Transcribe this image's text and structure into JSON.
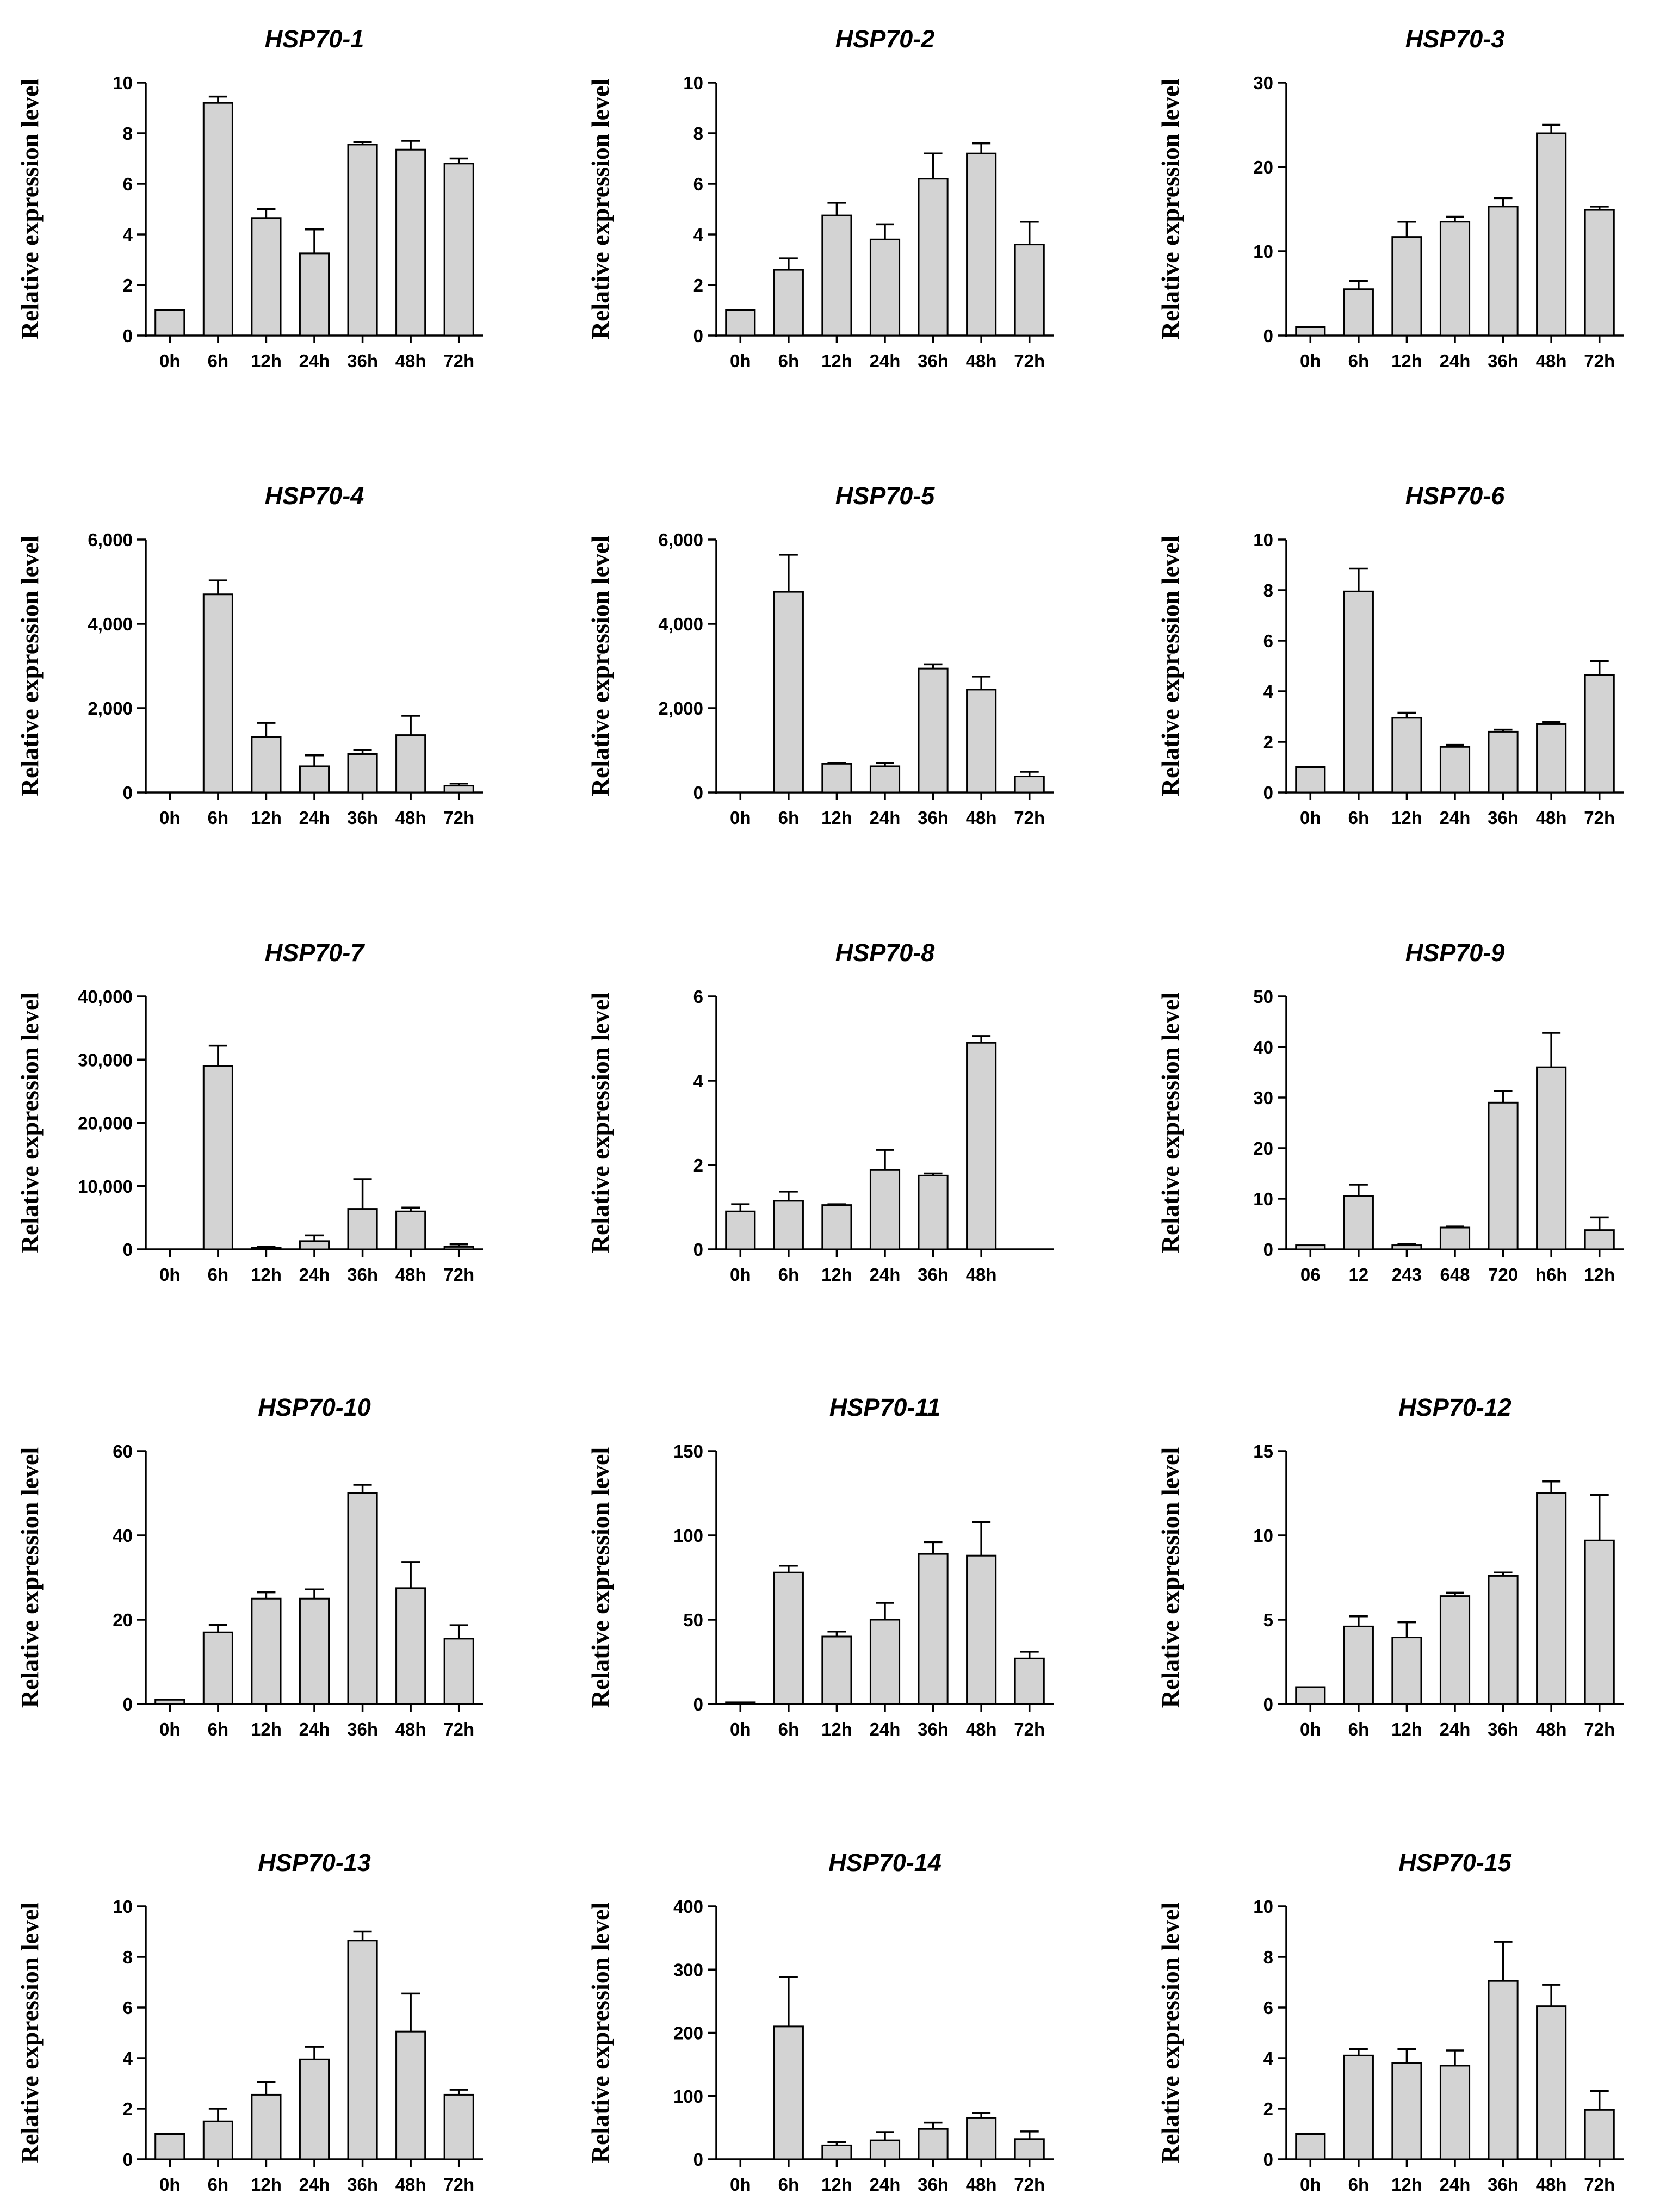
{
  "chart_data": [
    {
      "type": "bar",
      "title": "HSP70-1",
      "ylabel": "Relative expression level",
      "categories": [
        "0h",
        "6h",
        "12h",
        "24h",
        "36h",
        "48h",
        "72h"
      ],
      "values": [
        1,
        9.2,
        4.65,
        3.25,
        7.55,
        7.35,
        6.8
      ],
      "errors": [
        0,
        0.25,
        0.35,
        0.95,
        0.1,
        0.35,
        0.2
      ],
      "ylim": [
        0,
        10
      ],
      "yticks": [
        0,
        2,
        4,
        6,
        8,
        10
      ],
      "yticklabels": [
        "0",
        "2",
        "4",
        "6",
        "8",
        "10"
      ]
    },
    {
      "type": "bar",
      "title": "HSP70-2",
      "ylabel": "Relative expression level",
      "categories": [
        "0h",
        "6h",
        "12h",
        "24h",
        "36h",
        "48h",
        "72h"
      ],
      "values": [
        1,
        2.6,
        4.75,
        3.8,
        6.2,
        7.2,
        3.6
      ],
      "errors": [
        0,
        0.45,
        0.5,
        0.6,
        1.0,
        0.4,
        0.9
      ],
      "ylim": [
        0,
        10
      ],
      "yticks": [
        0,
        2,
        4,
        6,
        8,
        10
      ],
      "yticklabels": [
        "0",
        "2",
        "4",
        "6",
        "8",
        "10"
      ]
    },
    {
      "type": "bar",
      "title": "HSP70-3",
      "ylabel": "Relative expression level",
      "categories": [
        "0h",
        "6h",
        "12h",
        "24h",
        "36h",
        "48h",
        "72h"
      ],
      "values": [
        1,
        5.5,
        11.7,
        13.5,
        15.3,
        24,
        14.9
      ],
      "errors": [
        0,
        1.0,
        1.8,
        0.6,
        1.0,
        1.0,
        0.4
      ],
      "ylim": [
        0,
        30
      ],
      "yticks": [
        0,
        10,
        20,
        30
      ],
      "yticklabels": [
        "0",
        "10",
        "20",
        "30"
      ]
    },
    {
      "type": "bar",
      "title": "HSP70-4",
      "ylabel": "Relative expression level",
      "categories": [
        "0h",
        "6h",
        "12h",
        "24h",
        "36h",
        "48h",
        "72h"
      ],
      "values": [
        0,
        4700,
        1320,
        620,
        910,
        1360,
        160
      ],
      "errors": [
        0,
        330,
        330,
        260,
        100,
        460,
        50
      ],
      "ylim": [
        0,
        6000
      ],
      "yticks": [
        0,
        2000,
        4000,
        6000
      ],
      "yticklabels": [
        "0",
        "2,000",
        "4,000",
        "6,000"
      ]
    },
    {
      "type": "bar",
      "title": "HSP70-5",
      "ylabel": "Relative expression level",
      "categories": [
        "0h",
        "6h",
        "12h",
        "24h",
        "36h",
        "48h",
        "72h"
      ],
      "values": [
        0,
        4760,
        680,
        620,
        2940,
        2440,
        380
      ],
      "errors": [
        0,
        880,
        20,
        80,
        100,
        310,
        110
      ],
      "ylim": [
        0,
        6000
      ],
      "yticks": [
        0,
        2000,
        4000,
        6000
      ],
      "yticklabels": [
        "0",
        "2,000",
        "4,000",
        "6,000"
      ]
    },
    {
      "type": "bar",
      "title": "HSP70-6",
      "ylabel": "Relative expression level",
      "categories": [
        "0h",
        "6h",
        "12h",
        "24h",
        "36h",
        "48h",
        "72h"
      ],
      "values": [
        1,
        7.95,
        2.95,
        1.8,
        2.4,
        2.7,
        4.65
      ],
      "errors": [
        0,
        0.9,
        0.2,
        0.08,
        0.08,
        0.08,
        0.55
      ],
      "ylim": [
        0,
        10
      ],
      "yticks": [
        0,
        2,
        4,
        6,
        8,
        10
      ],
      "yticklabels": [
        "0",
        "2",
        "4",
        "6",
        "8",
        "10"
      ]
    },
    {
      "type": "bar",
      "title": "HSP70-7",
      "ylabel": "Relative expression level",
      "categories": [
        "0h",
        "6h",
        "12h",
        "24h",
        "36h",
        "48h",
        "72h"
      ],
      "values": [
        0,
        29000,
        250,
        1300,
        6400,
        6000,
        400
      ],
      "errors": [
        0,
        3200,
        200,
        900,
        4700,
        600,
        400
      ],
      "ylim": [
        0,
        40000
      ],
      "yticks": [
        0,
        10000,
        20000,
        30000,
        40000
      ],
      "yticklabels": [
        "0",
        "10,000",
        "20,000",
        "30,000",
        "40,000"
      ]
    },
    {
      "type": "bar",
      "title": "HSP70-8",
      "ylabel": "Relative expression level",
      "categories": [
        "0h",
        "6h",
        "12h",
        "24h",
        "36h",
        "48h"
      ],
      "values": [
        0.9,
        1.15,
        1.05,
        1.88,
        1.75,
        4.9
      ],
      "errors": [
        0.17,
        0.22,
        0.02,
        0.48,
        0.05,
        0.16
      ],
      "ylim": [
        0,
        6
      ],
      "yticks": [
        0,
        2,
        4,
        6
      ],
      "yticklabels": [
        "0",
        "2",
        "4",
        "6"
      ]
    },
    {
      "type": "bar",
      "title": "HSP70-9",
      "ylabel": "Relative expression level",
      "categories": [
        "06",
        "12",
        "243",
        "648",
        "720",
        "h6h",
        "12h"
      ],
      "values": [
        0.8,
        10.5,
        0.8,
        4.3,
        29,
        36,
        3.8
      ],
      "errors": [
        0,
        2.3,
        0.3,
        0.2,
        2.3,
        6.8,
        2.5
      ],
      "ylim": [
        0,
        50
      ],
      "yticks": [
        0,
        10,
        20,
        30,
        40,
        50
      ],
      "yticklabels": [
        "0",
        "10",
        "20",
        "30",
        "40",
        "50"
      ]
    },
    {
      "type": "bar",
      "title": "HSP70-10",
      "ylabel": "Relative expression level",
      "categories": [
        "0h",
        "6h",
        "12h",
        "24h",
        "36h",
        "48h",
        "72h"
      ],
      "values": [
        1,
        17,
        25,
        25,
        50,
        27.5,
        15.5
      ],
      "errors": [
        0,
        1.8,
        1.5,
        2.2,
        2,
        6.2,
        3.2
      ],
      "ylim": [
        0,
        60
      ],
      "yticks": [
        0,
        20,
        40,
        60
      ],
      "yticklabels": [
        "0",
        "20",
        "40",
        "60"
      ]
    },
    {
      "type": "bar",
      "title": "HSP70-11",
      "ylabel": "Relative expression level",
      "categories": [
        "0h",
        "6h",
        "12h",
        "24h",
        "36h",
        "48h",
        "72h"
      ],
      "values": [
        1,
        78,
        40,
        50,
        89,
        88,
        27
      ],
      "errors": [
        0,
        4,
        3,
        10,
        7,
        20,
        4
      ],
      "ylim": [
        0,
        150
      ],
      "yticks": [
        0,
        50,
        100,
        150
      ],
      "yticklabels": [
        "0",
        "50",
        "100",
        "150"
      ]
    },
    {
      "type": "bar",
      "title": "HSP70-12",
      "ylabel": "Relative expression level",
      "categories": [
        "0h",
        "6h",
        "12h",
        "24h",
        "36h",
        "48h",
        "72h"
      ],
      "values": [
        1,
        4.6,
        3.95,
        6.4,
        7.6,
        12.5,
        9.7
      ],
      "errors": [
        0,
        0.6,
        0.9,
        0.2,
        0.2,
        0.7,
        2.7
      ],
      "ylim": [
        0,
        15
      ],
      "yticks": [
        0,
        5,
        10,
        15
      ],
      "yticklabels": [
        "0",
        "5",
        "10",
        "15"
      ]
    },
    {
      "type": "bar",
      "title": "HSP70-13",
      "ylabel": "Relative expression level",
      "categories": [
        "0h",
        "6h",
        "12h",
        "24h",
        "36h",
        "48h",
        "72h"
      ],
      "values": [
        1,
        1.5,
        2.55,
        3.95,
        8.65,
        5.05,
        2.55
      ],
      "errors": [
        0,
        0.5,
        0.5,
        0.5,
        0.35,
        1.5,
        0.2
      ],
      "ylim": [
        0,
        10
      ],
      "yticks": [
        0,
        2,
        4,
        6,
        8,
        10
      ],
      "yticklabels": [
        "0",
        "2",
        "4",
        "6",
        "8",
        "10"
      ]
    },
    {
      "type": "bar",
      "title": "HSP70-14",
      "ylabel": "Relative expression level",
      "categories": [
        "0h",
        "6h",
        "12h",
        "24h",
        "36h",
        "48h",
        "72h"
      ],
      "values": [
        0,
        210,
        22,
        30,
        48,
        65,
        32
      ],
      "errors": [
        0,
        78,
        5,
        13,
        10,
        8,
        12
      ],
      "ylim": [
        0,
        400
      ],
      "yticks": [
        0,
        100,
        200,
        300,
        400
      ],
      "yticklabels": [
        "0",
        "100",
        "200",
        "300",
        "400"
      ]
    },
    {
      "type": "bar",
      "title": "HSP70-15",
      "ylabel": "Relative expression level",
      "categories": [
        "0h",
        "6h",
        "12h",
        "24h",
        "36h",
        "48h",
        "72h"
      ],
      "values": [
        1,
        4.1,
        3.8,
        3.7,
        7.05,
        6.05,
        1.95
      ],
      "errors": [
        0,
        0.25,
        0.55,
        0.6,
        1.55,
        0.85,
        0.75
      ],
      "ylim": [
        0,
        10
      ],
      "yticks": [
        0,
        2,
        4,
        6,
        8,
        10
      ],
      "yticklabels": [
        "0",
        "2",
        "4",
        "6",
        "8",
        "10"
      ]
    }
  ]
}
